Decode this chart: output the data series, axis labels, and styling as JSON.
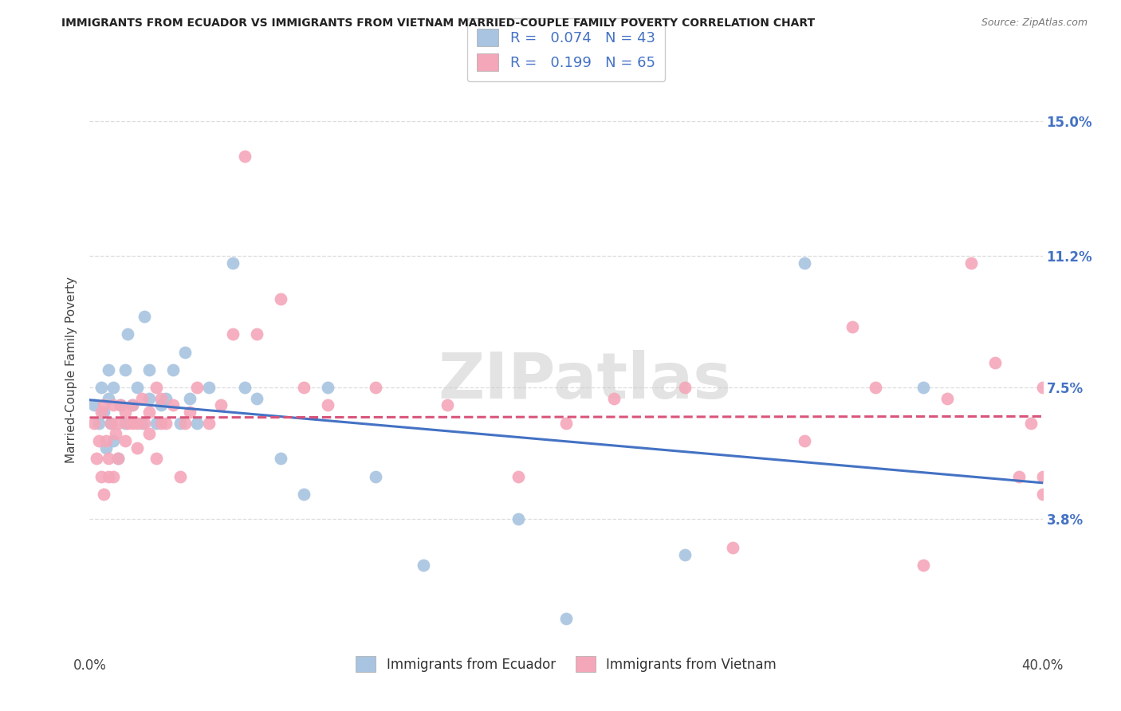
{
  "title": "IMMIGRANTS FROM ECUADOR VS IMMIGRANTS FROM VIETNAM MARRIED-COUPLE FAMILY POVERTY CORRELATION CHART",
  "source": "Source: ZipAtlas.com",
  "ylabel": "Married-Couple Family Poverty",
  "xlim": [
    0.0,
    0.4
  ],
  "ylim": [
    0.0,
    0.16
  ],
  "yticks": [
    0.038,
    0.075,
    0.112,
    0.15
  ],
  "ytick_labels": [
    "3.8%",
    "7.5%",
    "11.2%",
    "15.0%"
  ],
  "xticks": [
    0.0,
    0.08,
    0.16,
    0.24,
    0.32,
    0.4
  ],
  "xtick_labels": [
    "0.0%",
    "",
    "",
    "",
    "",
    "40.0%"
  ],
  "ecuador_color": "#a8c4e0",
  "vietnam_color": "#f4a7b9",
  "ecuador_R": 0.074,
  "ecuador_N": 43,
  "vietnam_R": 0.199,
  "vietnam_N": 65,
  "ecuador_line_color": "#4472c4",
  "vietnam_line_color": "#d9547a",
  "ecuador_line_style": "-",
  "vietnam_line_style": "--",
  "legend_label_ecuador": "Immigrants from Ecuador",
  "legend_label_vietnam": "Immigrants from Vietnam",
  "ecuador_x": [
    0.002,
    0.004,
    0.005,
    0.006,
    0.007,
    0.008,
    0.008,
    0.009,
    0.01,
    0.01,
    0.012,
    0.013,
    0.015,
    0.015,
    0.016,
    0.018,
    0.02,
    0.022,
    0.023,
    0.025,
    0.025,
    0.028,
    0.03,
    0.032,
    0.035,
    0.038,
    0.04,
    0.042,
    0.045,
    0.05,
    0.06,
    0.065,
    0.07,
    0.08,
    0.09,
    0.1,
    0.12,
    0.14,
    0.18,
    0.2,
    0.25,
    0.3,
    0.35
  ],
  "ecuador_y": [
    0.07,
    0.065,
    0.075,
    0.068,
    0.058,
    0.072,
    0.08,
    0.065,
    0.06,
    0.075,
    0.055,
    0.07,
    0.08,
    0.065,
    0.09,
    0.07,
    0.075,
    0.065,
    0.095,
    0.072,
    0.08,
    0.065,
    0.07,
    0.072,
    0.08,
    0.065,
    0.085,
    0.072,
    0.065,
    0.075,
    0.11,
    0.075,
    0.072,
    0.055,
    0.045,
    0.075,
    0.05,
    0.025,
    0.038,
    0.01,
    0.028,
    0.11,
    0.075
  ],
  "vietnam_x": [
    0.002,
    0.003,
    0.004,
    0.005,
    0.005,
    0.006,
    0.006,
    0.007,
    0.008,
    0.008,
    0.009,
    0.01,
    0.01,
    0.011,
    0.012,
    0.012,
    0.013,
    0.015,
    0.015,
    0.016,
    0.018,
    0.018,
    0.02,
    0.02,
    0.022,
    0.023,
    0.025,
    0.025,
    0.028,
    0.028,
    0.03,
    0.03,
    0.032,
    0.035,
    0.038,
    0.04,
    0.042,
    0.045,
    0.05,
    0.055,
    0.06,
    0.065,
    0.07,
    0.08,
    0.09,
    0.1,
    0.12,
    0.15,
    0.18,
    0.2,
    0.22,
    0.25,
    0.27,
    0.3,
    0.32,
    0.33,
    0.35,
    0.36,
    0.37,
    0.38,
    0.39,
    0.395,
    0.4,
    0.4,
    0.4
  ],
  "vietnam_y": [
    0.065,
    0.055,
    0.06,
    0.068,
    0.05,
    0.045,
    0.07,
    0.06,
    0.055,
    0.05,
    0.065,
    0.05,
    0.07,
    0.062,
    0.065,
    0.055,
    0.07,
    0.06,
    0.068,
    0.065,
    0.065,
    0.07,
    0.065,
    0.058,
    0.072,
    0.065,
    0.062,
    0.068,
    0.055,
    0.075,
    0.065,
    0.072,
    0.065,
    0.07,
    0.05,
    0.065,
    0.068,
    0.075,
    0.065,
    0.07,
    0.09,
    0.14,
    0.09,
    0.1,
    0.075,
    0.07,
    0.075,
    0.07,
    0.05,
    0.065,
    0.072,
    0.075,
    0.03,
    0.06,
    0.092,
    0.075,
    0.025,
    0.072,
    0.11,
    0.082,
    0.05,
    0.065,
    0.05,
    0.075,
    0.045
  ],
  "watermark": "ZIPatlas",
  "background_color": "#ffffff",
  "grid_color": "#dddddd",
  "title_color": "#222222",
  "right_ytick_color": "#4472c4"
}
